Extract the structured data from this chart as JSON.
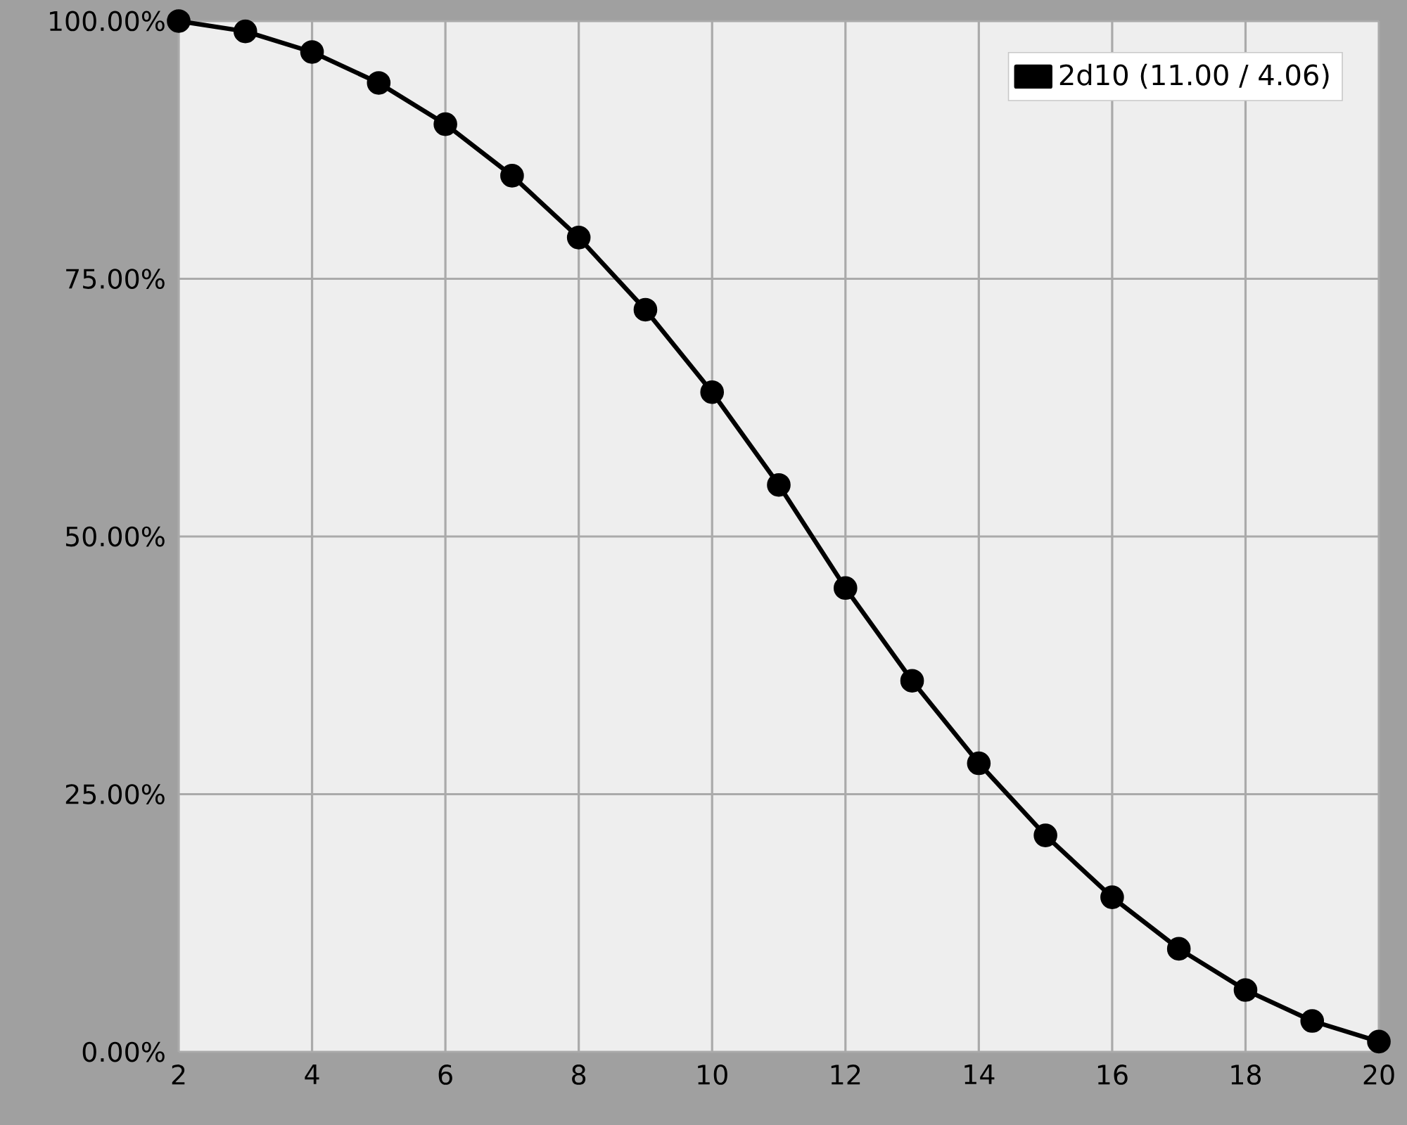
{
  "chart_data": {
    "type": "line",
    "x": [
      2,
      3,
      4,
      5,
      6,
      7,
      8,
      9,
      10,
      11,
      12,
      13,
      14,
      15,
      16,
      17,
      18,
      19,
      20
    ],
    "series": [
      {
        "name": "2d10 (11.00 / 4.06)",
        "color": "#000000",
        "values": [
          100,
          99,
          97,
          94,
          90,
          85,
          79,
          72,
          64,
          55,
          45,
          36,
          28,
          21,
          15,
          10,
          6,
          3,
          1
        ]
      }
    ],
    "xlim": [
      2,
      20
    ],
    "ylim": [
      0,
      100
    ],
    "xticks": [
      2,
      4,
      6,
      8,
      10,
      12,
      14,
      16,
      18,
      20
    ],
    "yticks": [
      {
        "value": 0,
        "label": "0.00%"
      },
      {
        "value": 25,
        "label": "25.00%"
      },
      {
        "value": 50,
        "label": "50.00%"
      },
      {
        "value": 75,
        "label": "75.00%"
      },
      {
        "value": 100,
        "label": "100.00%"
      }
    ],
    "grid": true,
    "legend": "top right",
    "marker": "circle",
    "line_style": "solid"
  }
}
